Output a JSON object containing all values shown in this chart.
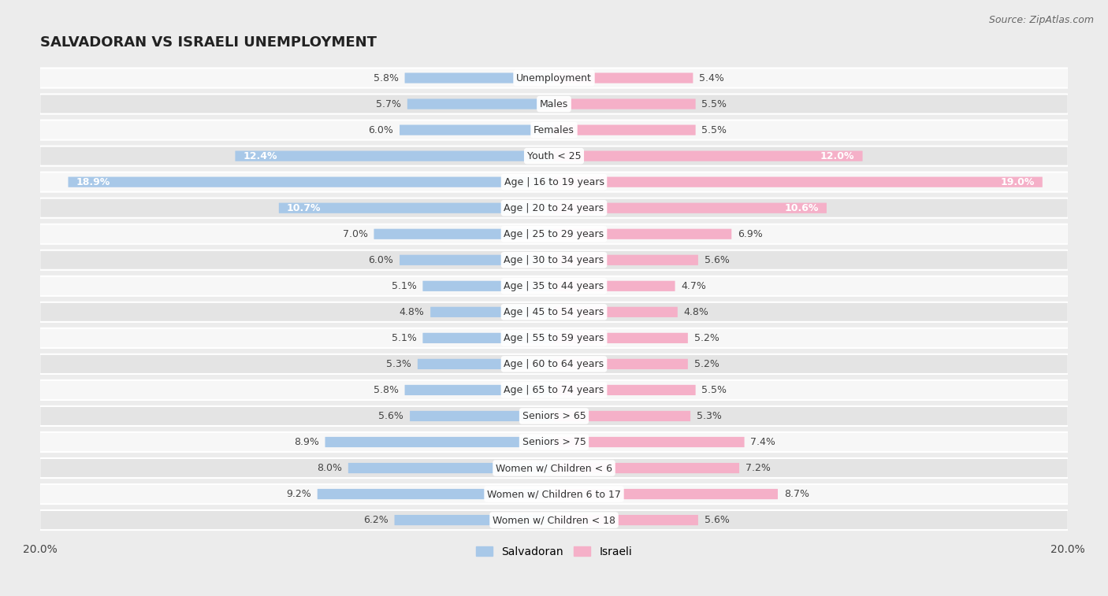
{
  "title": "SALVADORAN VS ISRAELI UNEMPLOYMENT",
  "source": "Source: ZipAtlas.com",
  "categories": [
    "Unemployment",
    "Males",
    "Females",
    "Youth < 25",
    "Age | 16 to 19 years",
    "Age | 20 to 24 years",
    "Age | 25 to 29 years",
    "Age | 30 to 34 years",
    "Age | 35 to 44 years",
    "Age | 45 to 54 years",
    "Age | 55 to 59 years",
    "Age | 60 to 64 years",
    "Age | 65 to 74 years",
    "Seniors > 65",
    "Seniors > 75",
    "Women w/ Children < 6",
    "Women w/ Children 6 to 17",
    "Women w/ Children < 18"
  ],
  "salvadoran": [
    5.8,
    5.7,
    6.0,
    12.4,
    18.9,
    10.7,
    7.0,
    6.0,
    5.1,
    4.8,
    5.1,
    5.3,
    5.8,
    5.6,
    8.9,
    8.0,
    9.2,
    6.2
  ],
  "israeli": [
    5.4,
    5.5,
    5.5,
    12.0,
    19.0,
    10.6,
    6.9,
    5.6,
    4.7,
    4.8,
    5.2,
    5.2,
    5.5,
    5.3,
    7.4,
    7.2,
    8.7,
    5.6
  ],
  "salvadoran_color": "#a8c8e8",
  "israeli_color": "#f5b0c8",
  "bg_color": "#ececec",
  "row_light": "#f7f7f7",
  "row_dark": "#e4e4e4",
  "max_value": 20.0,
  "label_fontsize": 9,
  "title_fontsize": 13,
  "source_fontsize": 9,
  "inside_label_threshold": 10.0
}
